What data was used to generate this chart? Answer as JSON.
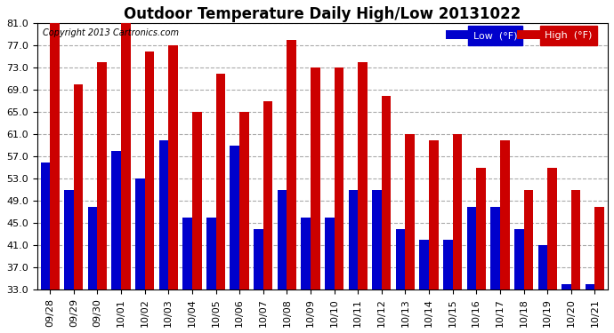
{
  "title": "Outdoor Temperature Daily High/Low 20131022",
  "copyright": "Copyright 2013 Cartronics.com",
  "categories": [
    "09/28",
    "09/29",
    "09/30",
    "10/01",
    "10/02",
    "10/03",
    "10/04",
    "10/05",
    "10/06",
    "10/07",
    "10/08",
    "10/09",
    "10/10",
    "10/11",
    "10/12",
    "10/13",
    "10/14",
    "10/15",
    "10/16",
    "10/17",
    "10/18",
    "10/19",
    "10/20",
    "10/21"
  ],
  "low": [
    56,
    51,
    48,
    58,
    53,
    60,
    46,
    46,
    59,
    44,
    51,
    46,
    46,
    51,
    51,
    44,
    42,
    42,
    48,
    48,
    44,
    41,
    34,
    34
  ],
  "high": [
    81,
    70,
    74,
    82,
    76,
    77,
    65,
    72,
    65,
    67,
    78,
    73,
    73,
    74,
    68,
    61,
    60,
    61,
    55,
    60,
    51,
    55,
    51,
    48
  ],
  "low_color": "#0000cc",
  "high_color": "#cc0000",
  "bg_color": "#ffffff",
  "plot_bg_color": "#ffffff",
  "grid_color": "#aaaaaa",
  "ymin": 33.0,
  "ymax": 81.0,
  "yticks": [
    33.0,
    37.0,
    41.0,
    45.0,
    49.0,
    53.0,
    57.0,
    61.0,
    65.0,
    69.0,
    73.0,
    77.0,
    81.0
  ],
  "bar_width": 0.4,
  "title_fontsize": 12,
  "tick_fontsize": 8,
  "copyright_fontsize": 7
}
